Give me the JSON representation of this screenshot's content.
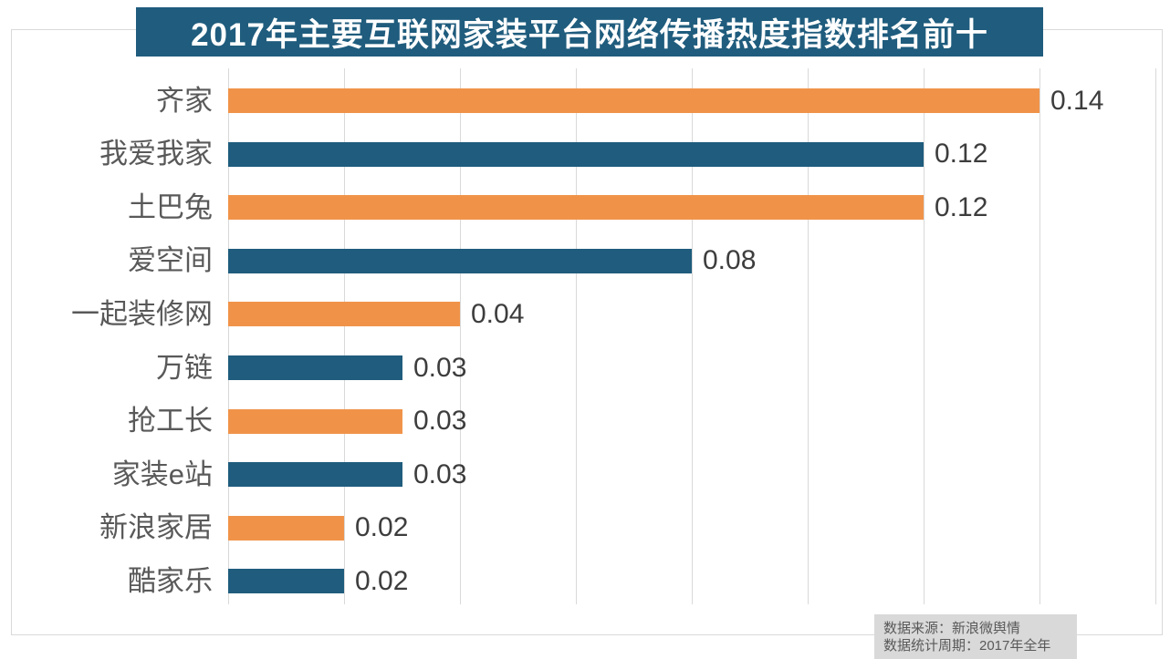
{
  "title": "2017年主要互联网家装平台网络传播热度指数排名前十",
  "chart_data": {
    "type": "bar",
    "orientation": "horizontal",
    "title": "2017年主要互联网家装平台网络传播热度指数排名前十",
    "categories": [
      "齐家",
      "我爱我家",
      "土巴兔",
      "爱空间",
      "一起装修网",
      "万链",
      "抢工长",
      "家装e站",
      "新浪家居",
      "酷家乐"
    ],
    "values": [
      0.14,
      0.12,
      0.12,
      0.08,
      0.04,
      0.03,
      0.03,
      0.03,
      0.02,
      0.02
    ],
    "value_labels": [
      "0.14",
      "0.12",
      "0.12",
      "0.08",
      "0.04",
      "0.03",
      "0.03",
      "0.03",
      "0.02",
      "0.02"
    ],
    "xlim": [
      0,
      0.16
    ],
    "gridline_step": 0.02,
    "grid": true,
    "legend": "none",
    "bar_colors_alternating": [
      "#F09349",
      "#1F5C7D"
    ],
    "title_bg_color": "#1F5C7D",
    "title_text_color": "#FFFFFF",
    "category_label_color": "#595959",
    "value_label_color": "#3D3D3D",
    "gridline_color": "#D9D9D9",
    "frame_border_color": "#D9D9D9"
  },
  "footer": {
    "source_line1": "数据来源：新浪微舆情",
    "source_line2": "数据统计周期：2017年全年",
    "bg_color": "#D9D9D9",
    "text_color": "#595959"
  }
}
